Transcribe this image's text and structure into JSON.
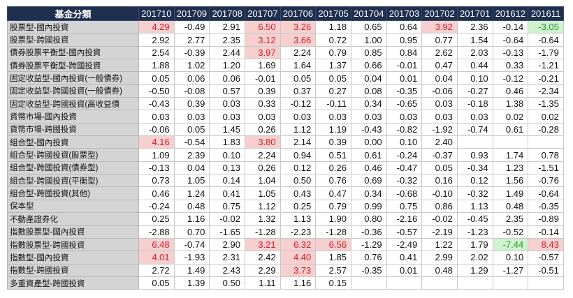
{
  "table": {
    "corner": "基金分類",
    "columns": [
      "201710",
      "201709",
      "201708",
      "201707",
      "201706",
      "201705",
      "201704",
      "201703",
      "201702",
      "201701",
      "201612",
      "201611"
    ],
    "colors": {
      "highlight_bg": "#f6cfcf",
      "highlight_text": "#d0202a",
      "low_bg": "#cff2cf",
      "low_text": "#1f9a2f",
      "header_bg": "#1f2f4f"
    },
    "rows": [
      {
        "name": "股票型-國內投資",
        "values": [
          "4.29",
          "-0.49",
          "2.91",
          "6.50",
          "3.26",
          "1.18",
          "0.65",
          "0.64",
          "3.92",
          "2.36",
          "-0.14",
          "-3.05"
        ],
        "hl": [
          "hi",
          "",
          "",
          "hi",
          "hi",
          "",
          "",
          "",
          "hi",
          "",
          "",
          "lo"
        ]
      },
      {
        "name": "股票型-跨國投資",
        "values": [
          "2.92",
          "2.77",
          "2.35",
          "3.12",
          "3.66",
          "0.72",
          "1.00",
          "0.95",
          "0.77",
          "1.54",
          "-0.64",
          "-0.64"
        ],
        "hl": [
          "",
          "",
          "",
          "hi",
          "hi",
          "",
          "",
          "",
          "",
          "",
          "",
          ""
        ]
      },
      {
        "name": "債券股票平衡型-國內投資",
        "values": [
          "2.54",
          "-0.39",
          "2.44",
          "3.97",
          "2.24",
          "0.79",
          "0.85",
          "0.84",
          "2.62",
          "2.03",
          "-0.13",
          "-1.79"
        ],
        "hl": [
          "",
          "",
          "",
          "hi",
          "",
          "",
          "",
          "",
          "",
          "",
          "",
          ""
        ]
      },
      {
        "name": "債券股票平衡型-跨國投資",
        "values": [
          "1.88",
          "1.02",
          "1.20",
          "1.69",
          "1.64",
          "1.37",
          "0.66",
          "-0.01",
          "0.47",
          "0.44",
          "0.33",
          "-1.21"
        ],
        "hl": [
          "",
          "",
          "",
          "",
          "",
          "",
          "",
          "",
          "",
          "",
          "",
          ""
        ]
      },
      {
        "name": "固定收益型-國內投資(一般債券)",
        "values": [
          "0.05",
          "0.06",
          "0.06",
          "-0.01",
          "0.05",
          "0.05",
          "0.04",
          "0.01",
          "0.04",
          "0.10",
          "-0.12",
          "-0.21"
        ],
        "hl": [
          "",
          "",
          "",
          "",
          "",
          "",
          "",
          "",
          "",
          "",
          "",
          ""
        ]
      },
      {
        "name": "固定收益型-跨國投資(一般債券)",
        "values": [
          "-0.50",
          "-0.08",
          "0.57",
          "0.39",
          "0.37",
          "0.27",
          "0.08",
          "-0.35",
          "-0.06",
          "-0.27",
          "0.46",
          "-2.34"
        ],
        "hl": [
          "",
          "",
          "",
          "",
          "",
          "",
          "",
          "",
          "",
          "",
          "",
          ""
        ]
      },
      {
        "name": "固定收益型-跨國投資(高收益債",
        "values": [
          "-0.43",
          "0.39",
          "0.03",
          "0.33",
          "-0.12",
          "-0.11",
          "0.34",
          "-0.65",
          "0.03",
          "-0.18",
          "1.38",
          "-1.35"
        ],
        "hl": [
          "",
          "",
          "",
          "",
          "",
          "",
          "",
          "",
          "",
          "",
          "",
          ""
        ]
      },
      {
        "name": "貨幣市場-國內投資",
        "values": [
          "0.03",
          "0.03",
          "0.03",
          "0.03",
          "0.03",
          "0.03",
          "0.03",
          "0.03",
          "0.03",
          "0.03",
          "0.02",
          "0.02"
        ],
        "hl": [
          "",
          "",
          "",
          "",
          "",
          "",
          "",
          "",
          "",
          "",
          "",
          ""
        ]
      },
      {
        "name": "貨幣市場-跨國投資",
        "values": [
          "-0.06",
          "0.05",
          "1.45",
          "0.26",
          "1.12",
          "1.19",
          "-0.43",
          "-0.82",
          "-1.92",
          "-0.74",
          "0.61",
          "-0.28"
        ],
        "hl": [
          "",
          "",
          "",
          "",
          "",
          "",
          "",
          "",
          "",
          "",
          "",
          ""
        ]
      },
      {
        "name": "組合型-國內投資",
        "values": [
          "4.16",
          "-0.54",
          "1.83",
          "3.80",
          "2.14",
          "0.39",
          "0.00",
          "0.10",
          "2.40",
          "",
          "",
          ""
        ],
        "hl": [
          "hi",
          "",
          "",
          "hi",
          "",
          "",
          "",
          "",
          "",
          "",
          "",
          ""
        ]
      },
      {
        "name": "組合型-跨國投資(股票型)",
        "values": [
          "1.09",
          "2.39",
          "0.10",
          "2.24",
          "0.94",
          "0.51",
          "0.61",
          "-0.24",
          "-0.37",
          "0.93",
          "1.74",
          "0.78"
        ],
        "hl": [
          "",
          "",
          "",
          "",
          "",
          "",
          "",
          "",
          "",
          "",
          "",
          ""
        ]
      },
      {
        "name": "組合型-跨國投資(債券型)",
        "values": [
          "-0.13",
          "0.04",
          "0.13",
          "0.26",
          "0.12",
          "0.26",
          "0.46",
          "-0.47",
          "0.05",
          "-0.34",
          "1.23",
          "-1.51"
        ],
        "hl": [
          "",
          "",
          "",
          "",
          "",
          "",
          "",
          "",
          "",
          "",
          "",
          ""
        ]
      },
      {
        "name": "組合型-跨國投資(平衡型)",
        "values": [
          "0.73",
          "1.05",
          "0.14",
          "1.04",
          "0.50",
          "0.76",
          "0.69",
          "-0.32",
          "0.16",
          "0.12",
          "1.56",
          "-0.76"
        ],
        "hl": [
          "",
          "",
          "",
          "",
          "",
          "",
          "",
          "",
          "",
          "",
          "",
          ""
        ]
      },
      {
        "name": "組合型-跨國投資(其他)",
        "values": [
          "0.46",
          "1.24",
          "0.41",
          "1.05",
          "0.43",
          "0.47",
          "0.34",
          "-0.68",
          "-0.10",
          "-0.32",
          "1.49",
          "-0.64"
        ],
        "hl": [
          "",
          "",
          "",
          "",
          "",
          "",
          "",
          "",
          "",
          "",
          "",
          ""
        ]
      },
      {
        "name": "保本型",
        "values": [
          "-0.24",
          "0.48",
          "0.75",
          "1.12",
          "0.25",
          "0.79",
          "0.99",
          "0.75",
          "0.86",
          "1.13",
          "0.48",
          "-0.35"
        ],
        "hl": [
          "",
          "",
          "",
          "",
          "",
          "",
          "",
          "",
          "",
          "",
          "",
          ""
        ]
      },
      {
        "name": "不動產證券化",
        "values": [
          "0.25",
          "1.16",
          "-0.02",
          "1.32",
          "1.13",
          "1.90",
          "0.80",
          "-2.16",
          "-0.02",
          "-0.45",
          "2.35",
          "-0.89"
        ],
        "hl": [
          "",
          "",
          "",
          "",
          "",
          "",
          "",
          "",
          "",
          "",
          "",
          ""
        ]
      },
      {
        "name": "指數股票型-國內投資",
        "values": [
          "-2.88",
          "0.70",
          "-1.65",
          "-1.28",
          "-2.23",
          "-1.28",
          "-0.36",
          "-0.57",
          "-2.19",
          "-1.23",
          "-0.52",
          "-0.14"
        ],
        "hl": [
          "",
          "",
          "",
          "",
          "",
          "",
          "",
          "",
          "",
          "",
          "",
          ""
        ]
      },
      {
        "name": "指數股票型-跨國投資",
        "values": [
          "6.48",
          "-0.74",
          "2.90",
          "3.21",
          "6.32",
          "6.56",
          "-1.29",
          "-2.49",
          "1.22",
          "1.79",
          "-7.44",
          "8.43"
        ],
        "hl": [
          "hi",
          "",
          "",
          "hi",
          "hi",
          "hi",
          "",
          "",
          "",
          "",
          "lo",
          "hi"
        ]
      },
      {
        "name": "指數型-國內投資",
        "values": [
          "4.01",
          "-1.93",
          "2.31",
          "2.42",
          "4.40",
          "1.85",
          "0.76",
          "0.41",
          "2.99",
          "2.02",
          "0.10",
          "-0.57"
        ],
        "hl": [
          "hi",
          "",
          "",
          "",
          "hi",
          "",
          "",
          "",
          "",
          "",
          "",
          ""
        ]
      },
      {
        "name": "指數型-跨國投資",
        "values": [
          "2.72",
          "1.49",
          "2.43",
          "2.29",
          "3.73",
          "2.57",
          "-0.35",
          "0.01",
          "0.48",
          "1.29",
          "-1.27",
          "-0.51"
        ],
        "hl": [
          "",
          "",
          "",
          "",
          "hi",
          "",
          "",
          "",
          "",
          "",
          "",
          ""
        ]
      },
      {
        "name": "多重資產型-跨國投資",
        "values": [
          "0.05",
          "1.39",
          "0.50",
          "1.11",
          "1.16",
          "0.15",
          "",
          "",
          "",
          "",
          "",
          ""
        ],
        "hl": [
          "",
          "",
          "",
          "",
          "",
          "",
          "",
          "",
          "",
          "",
          "",
          ""
        ]
      }
    ]
  }
}
